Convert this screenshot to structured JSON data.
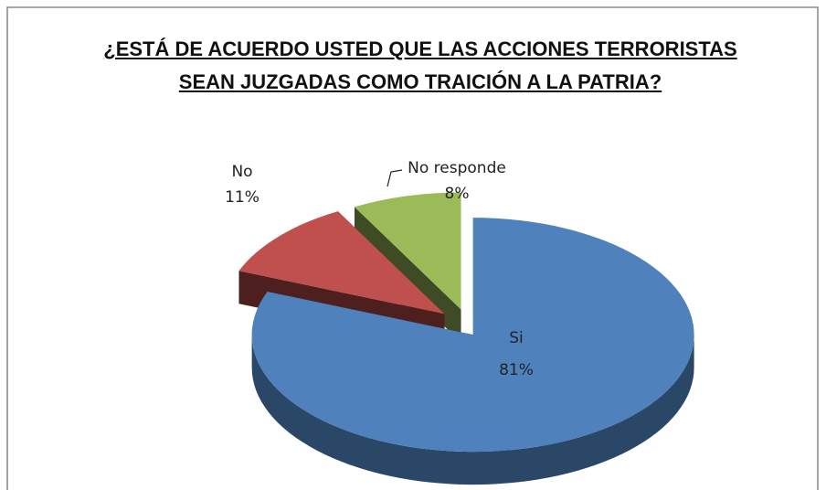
{
  "chart_data": {
    "type": "pie",
    "title": "¿ESTÁ DE ACUERDO USTED QUE LAS ACCIONES TERRORISTAS SEAN JUZGADAS COMO TRAICIÓN A LA PATRIA?",
    "categories": [
      "Si",
      "No",
      "No responde"
    ],
    "values": [
      81,
      11,
      8
    ],
    "value_labels": [
      "81%",
      "11%",
      "8%"
    ],
    "colors": [
      "#4f81bd",
      "#c0504d",
      "#9bbb59"
    ]
  }
}
